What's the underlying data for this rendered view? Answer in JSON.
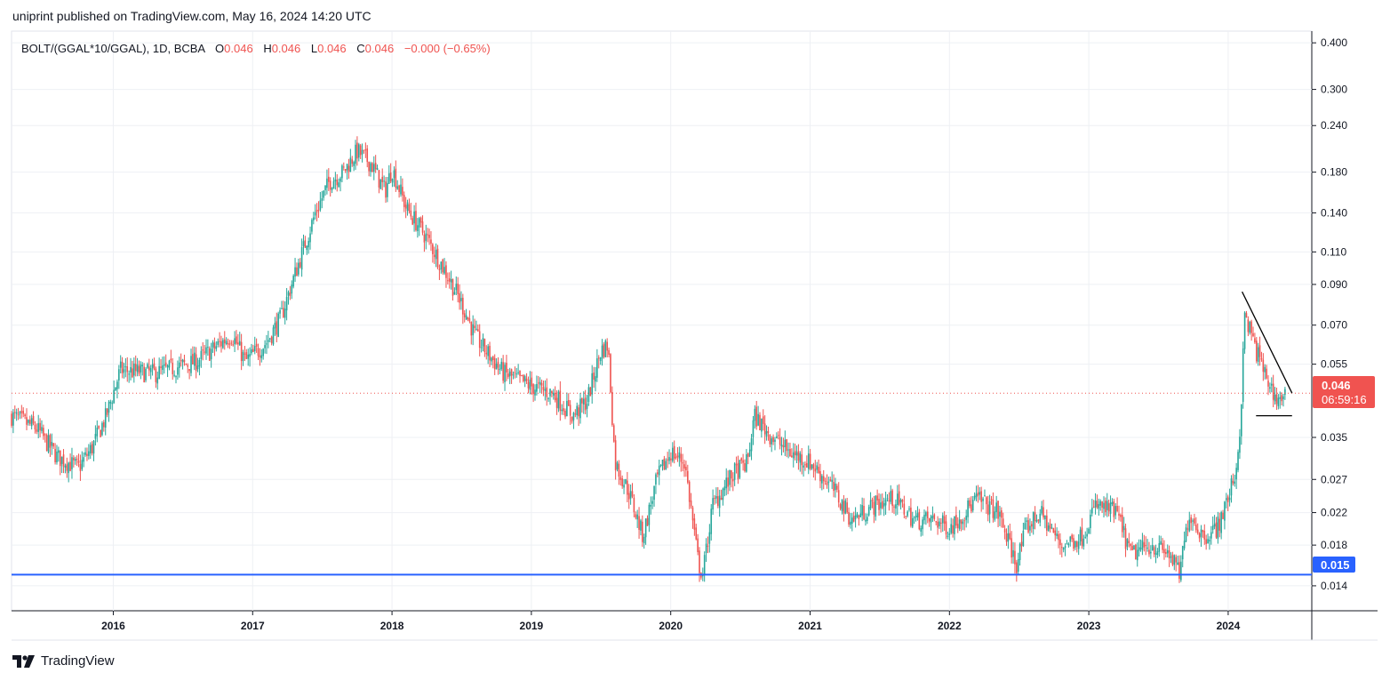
{
  "header": {
    "published": "uniprint published on TradingView.com, May 16, 2024 14:20 UTC"
  },
  "footer": {
    "brand": "TradingView",
    "logo_icon": "tradingview-logo-icon"
  },
  "legend": {
    "symbol": "BOLT/(GGAL*10/GGAL), 1D, BCBA",
    "o_label": "O",
    "o_value": "0.046",
    "h_label": "H",
    "h_value": "0.046",
    "l_label": "L",
    "l_value": "0.046",
    "c_label": "C",
    "c_value": "0.046",
    "change": "−0.000 (−0.65%)"
  },
  "colors": {
    "up": "#26a69a",
    "down": "#ef5350",
    "support": "#2962ff",
    "price_tag": "#f05350",
    "trendline": "#000000"
  },
  "price_tag": {
    "value": "0.046",
    "countdown": "06:59:16"
  },
  "support_tag": {
    "value": "0.015"
  },
  "chart_data": {
    "type": "candlestick",
    "scale": "log",
    "ylim": [
      0.012,
      0.43
    ],
    "xlim": [
      2015.27,
      2024.6
    ],
    "y_ticks": [
      "0.400",
      "0.300",
      "0.240",
      "0.180",
      "0.140",
      "0.110",
      "0.090",
      "0.070",
      "0.055",
      "0.035",
      "0.027",
      "0.022",
      "0.018",
      "0.014"
    ],
    "x_ticks": [
      "2016",
      "2017",
      "2018",
      "2019",
      "2020",
      "2021",
      "2022",
      "2023",
      "2024"
    ],
    "current_price": 0.046,
    "support_level": 0.015,
    "price_path": [
      [
        2015.27,
        0.04
      ],
      [
        2015.45,
        0.037
      ],
      [
        2015.6,
        0.031
      ],
      [
        2015.75,
        0.029
      ],
      [
        2015.85,
        0.033
      ],
      [
        2015.95,
        0.04
      ],
      [
        2016.05,
        0.053
      ],
      [
        2016.3,
        0.052
      ],
      [
        2016.6,
        0.056
      ],
      [
        2016.85,
        0.066
      ],
      [
        2016.95,
        0.056
      ],
      [
        2017.1,
        0.063
      ],
      [
        2017.2,
        0.073
      ],
      [
        2017.3,
        0.095
      ],
      [
        2017.45,
        0.14
      ],
      [
        2017.55,
        0.17
      ],
      [
        2017.65,
        0.18
      ],
      [
        2017.75,
        0.205
      ],
      [
        2017.85,
        0.19
      ],
      [
        2017.95,
        0.16
      ],
      [
        2018.0,
        0.185
      ],
      [
        2018.1,
        0.145
      ],
      [
        2018.25,
        0.12
      ],
      [
        2018.4,
        0.095
      ],
      [
        2018.5,
        0.08
      ],
      [
        2018.6,
        0.065
      ],
      [
        2018.7,
        0.058
      ],
      [
        2018.8,
        0.052
      ],
      [
        2018.9,
        0.05
      ],
      [
        2019.0,
        0.048
      ],
      [
        2019.15,
        0.046
      ],
      [
        2019.3,
        0.04
      ],
      [
        2019.4,
        0.044
      ],
      [
        2019.5,
        0.06
      ],
      [
        2019.55,
        0.062
      ],
      [
        2019.6,
        0.03
      ],
      [
        2019.7,
        0.025
      ],
      [
        2019.8,
        0.019
      ],
      [
        2019.9,
        0.027
      ],
      [
        2020.0,
        0.032
      ],
      [
        2020.1,
        0.03
      ],
      [
        2020.2,
        0.016
      ],
      [
        2020.23,
        0.015
      ],
      [
        2020.3,
        0.023
      ],
      [
        2020.45,
        0.028
      ],
      [
        2020.55,
        0.03
      ],
      [
        2020.6,
        0.04
      ],
      [
        2020.7,
        0.036
      ],
      [
        2020.85,
        0.032
      ],
      [
        2021.0,
        0.03
      ],
      [
        2021.15,
        0.026
      ],
      [
        2021.3,
        0.021
      ],
      [
        2021.45,
        0.023
      ],
      [
        2021.6,
        0.024
      ],
      [
        2021.75,
        0.021
      ],
      [
        2021.9,
        0.021
      ],
      [
        2022.0,
        0.02
      ],
      [
        2022.2,
        0.024
      ],
      [
        2022.35,
        0.022
      ],
      [
        2022.48,
        0.016
      ],
      [
        2022.55,
        0.02
      ],
      [
        2022.65,
        0.022
      ],
      [
        2022.8,
        0.018
      ],
      [
        2022.95,
        0.019
      ],
      [
        2023.05,
        0.023
      ],
      [
        2023.2,
        0.022
      ],
      [
        2023.3,
        0.017
      ],
      [
        2023.45,
        0.018
      ],
      [
        2023.58,
        0.017
      ],
      [
        2023.65,
        0.015
      ],
      [
        2023.72,
        0.022
      ],
      [
        2023.82,
        0.019
      ],
      [
        2023.92,
        0.02
      ],
      [
        2024.0,
        0.024
      ],
      [
        2024.05,
        0.028
      ],
      [
        2024.08,
        0.034
      ],
      [
        2024.1,
        0.05
      ],
      [
        2024.12,
        0.075
      ],
      [
        2024.2,
        0.06
      ],
      [
        2024.28,
        0.05
      ],
      [
        2024.35,
        0.044
      ],
      [
        2024.42,
        0.046
      ]
    ],
    "trendlines": [
      {
        "kind": "falling-resistance",
        "from": [
          2024.1,
          0.086
        ],
        "to": [
          2024.42,
          0.046
        ]
      },
      {
        "kind": "horizontal-support",
        "from": [
          2024.2,
          0.04
        ],
        "to": [
          2024.42,
          0.04
        ]
      }
    ]
  }
}
